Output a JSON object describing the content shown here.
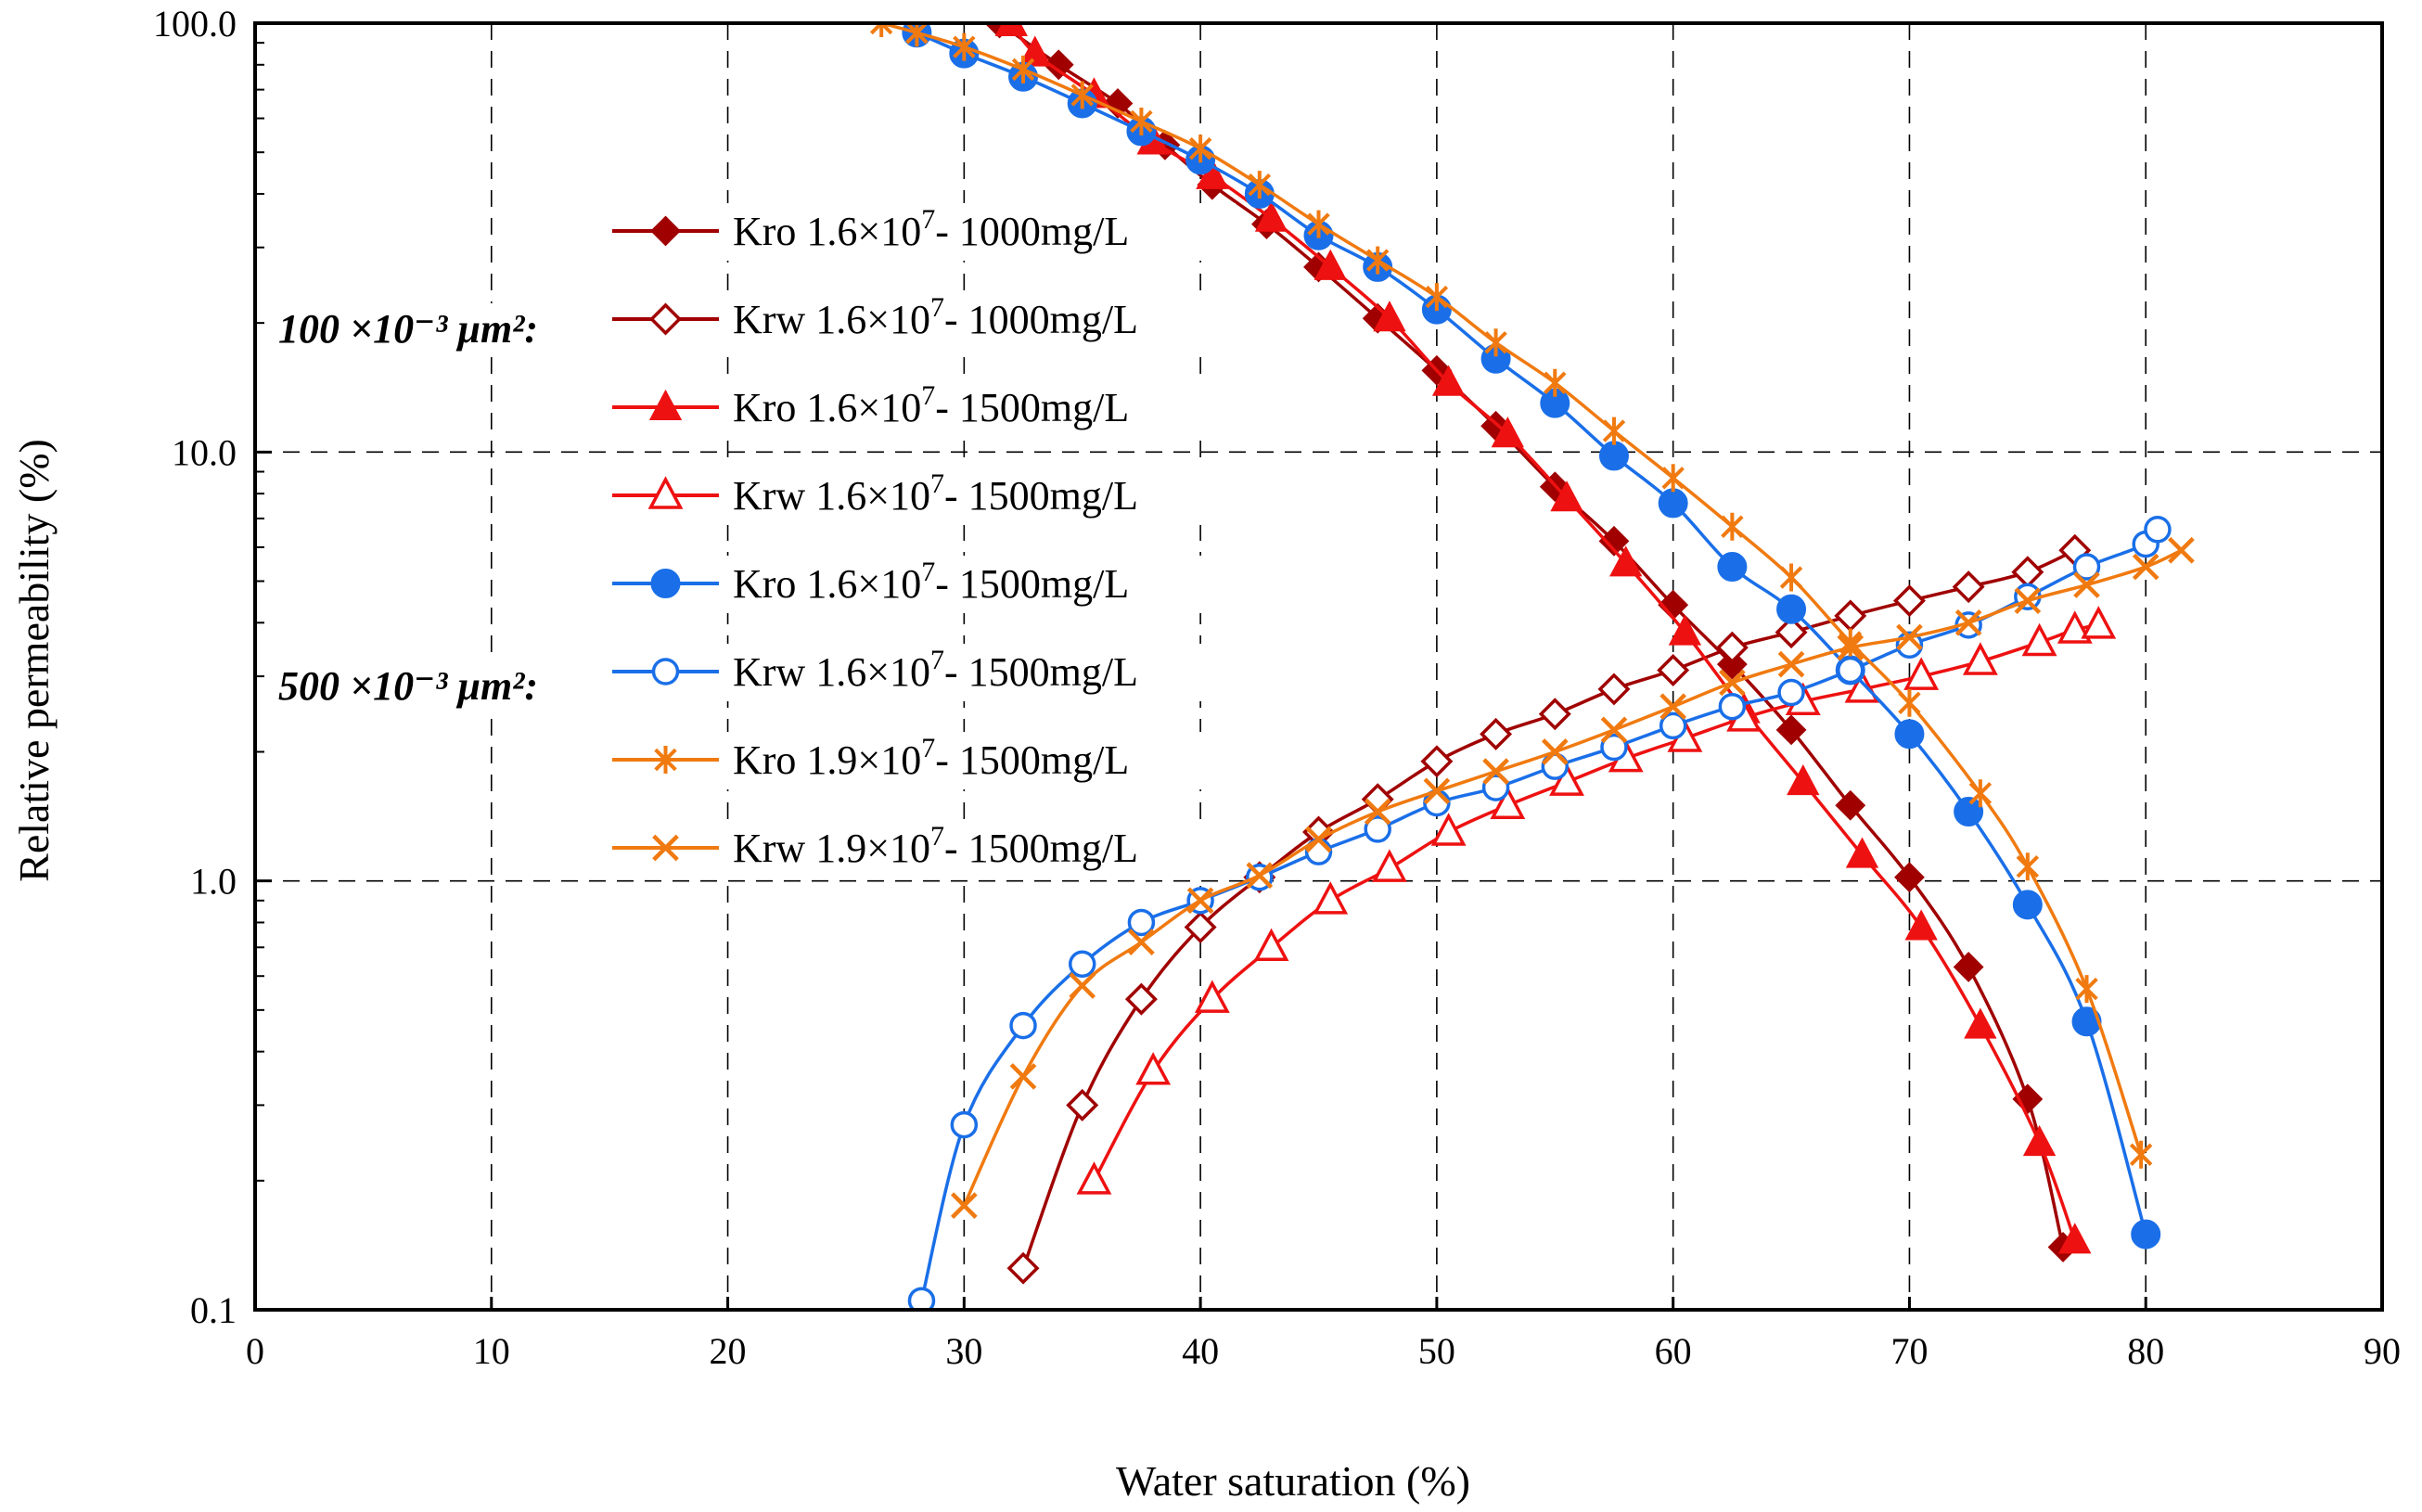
{
  "chart_data": {
    "type": "line",
    "title": "",
    "xlabel": "Water saturation (%)",
    "ylabel": "Relative permeability (%)",
    "xlim": [
      0,
      90
    ],
    "ylim": [
      0.1,
      100
    ],
    "yscale": "log",
    "grid": true,
    "x_ticks": [
      0,
      10,
      20,
      30,
      40,
      50,
      60,
      70,
      80,
      90
    ],
    "x_tick_labels": [
      "0",
      "10",
      "20",
      "30",
      "40",
      "50",
      "60",
      "70",
      "80",
      "90"
    ],
    "y_ticks": [
      0.1,
      1,
      10,
      100
    ],
    "y_tick_labels": [
      "0.1",
      "1.0",
      "10.0",
      "100.0"
    ],
    "group_labels": [
      {
        "text": "100 ×10⁻³ μm²:",
        "series_start": 0
      },
      {
        "text": "500 ×10⁻³ μm²:",
        "series_start": 4
      }
    ],
    "series": [
      {
        "name": "Kro 1.6×10⁷- 1000mg/L",
        "color": "#a00000",
        "marker": "diamond-filled",
        "points": [
          [
            31.5,
            100
          ],
          [
            34,
            80
          ],
          [
            36.5,
            65
          ],
          [
            38.5,
            52
          ],
          [
            40.5,
            42
          ],
          [
            42.8,
            34
          ],
          [
            45,
            27
          ],
          [
            47.5,
            20.5
          ],
          [
            50,
            15.5
          ],
          [
            52.5,
            11.5
          ],
          [
            55,
            8.3
          ],
          [
            57.5,
            6.2
          ],
          [
            60,
            4.4
          ],
          [
            62.5,
            3.2
          ],
          [
            65,
            2.25
          ],
          [
            67.5,
            1.5
          ],
          [
            70,
            1.02
          ],
          [
            72.5,
            0.63
          ],
          [
            75,
            0.31
          ],
          [
            76.5,
            0.14
          ]
        ]
      },
      {
        "name": "Krw 1.6×10⁷- 1000mg/L",
        "color": "#a00000",
        "marker": "diamond-open",
        "points": [
          [
            32.5,
            0.125
          ],
          [
            35,
            0.3
          ],
          [
            37.5,
            0.53
          ],
          [
            40,
            0.78
          ],
          [
            42.5,
            1.02
          ],
          [
            45,
            1.3
          ],
          [
            47.5,
            1.55
          ],
          [
            50,
            1.9
          ],
          [
            52.5,
            2.2
          ],
          [
            55,
            2.45
          ],
          [
            57.5,
            2.8
          ],
          [
            60,
            3.1
          ],
          [
            62.5,
            3.5
          ],
          [
            65,
            3.8
          ],
          [
            67.5,
            4.15
          ],
          [
            70,
            4.5
          ],
          [
            72.5,
            4.85
          ],
          [
            75,
            5.25
          ],
          [
            77,
            5.9
          ]
        ]
      },
      {
        "name": "Kro 1.6×10⁷- 1500mg/L",
        "color": "#ee1111",
        "marker": "triangle-filled",
        "points": [
          [
            32,
            100
          ],
          [
            33,
            85
          ],
          [
            35.5,
            68
          ],
          [
            38,
            53
          ],
          [
            40.5,
            44
          ],
          [
            43,
            35
          ],
          [
            45.5,
            27
          ],
          [
            48,
            20.5
          ],
          [
            50.5,
            14.5
          ],
          [
            53,
            11
          ],
          [
            55.5,
            7.8
          ],
          [
            58,
            5.5
          ],
          [
            60.5,
            3.8
          ],
          [
            63,
            2.5
          ],
          [
            65.5,
            1.7
          ],
          [
            68,
            1.15
          ],
          [
            70.5,
            0.78
          ],
          [
            73,
            0.46
          ],
          [
            75.5,
            0.245
          ],
          [
            77,
            0.145
          ]
        ]
      },
      {
        "name": "Krw 1.6×10⁷- 1500mg/L",
        "color": "#ee1111",
        "marker": "triangle-open",
        "points": [
          [
            35.5,
            0.2
          ],
          [
            38,
            0.36
          ],
          [
            40.5,
            0.53
          ],
          [
            43,
            0.7
          ],
          [
            45.5,
            0.9
          ],
          [
            48,
            1.07
          ],
          [
            50.5,
            1.3
          ],
          [
            53,
            1.5
          ],
          [
            55.5,
            1.7
          ],
          [
            58,
            1.93
          ],
          [
            60.5,
            2.15
          ],
          [
            63,
            2.4
          ],
          [
            65.5,
            2.62
          ],
          [
            68,
            2.8
          ],
          [
            70.5,
            3.0
          ],
          [
            73,
            3.25
          ],
          [
            75.5,
            3.6
          ],
          [
            77,
            3.85
          ],
          [
            78,
            3.95
          ]
        ]
      },
      {
        "name": "Kro 1.6×10⁷- 1500mg/L",
        "color": "#1a6fe8",
        "marker": "circle-filled",
        "points": [
          [
            28,
            95
          ],
          [
            30,
            85
          ],
          [
            32.5,
            75
          ],
          [
            35,
            65
          ],
          [
            37.5,
            56
          ],
          [
            40,
            48
          ],
          [
            42.5,
            40
          ],
          [
            45,
            32
          ],
          [
            47.5,
            27
          ],
          [
            50,
            21.5
          ],
          [
            52.5,
            16.5
          ],
          [
            55,
            13
          ],
          [
            57.5,
            9.8
          ],
          [
            60,
            7.6
          ],
          [
            62.5,
            5.4
          ],
          [
            65,
            4.3
          ],
          [
            67.5,
            3.1
          ],
          [
            70,
            2.2
          ],
          [
            72.5,
            1.45
          ],
          [
            75,
            0.88
          ],
          [
            77.5,
            0.47
          ],
          [
            80,
            0.15
          ]
        ]
      },
      {
        "name": "Krw 1.6×10⁷- 1500mg/L",
        "color": "#1a6fe8",
        "marker": "circle-open",
        "points": [
          [
            28.2,
            0.105
          ],
          [
            30,
            0.27
          ],
          [
            32.5,
            0.46
          ],
          [
            35,
            0.64
          ],
          [
            37.5,
            0.8
          ],
          [
            40,
            0.9
          ],
          [
            42.5,
            1.02
          ],
          [
            45,
            1.17
          ],
          [
            47.5,
            1.32
          ],
          [
            50,
            1.52
          ],
          [
            52.5,
            1.65
          ],
          [
            55,
            1.85
          ],
          [
            57.5,
            2.05
          ],
          [
            60,
            2.3
          ],
          [
            62.5,
            2.55
          ],
          [
            65,
            2.75
          ],
          [
            67.5,
            3.1
          ],
          [
            70,
            3.55
          ],
          [
            72.5,
            3.95
          ],
          [
            75,
            4.6
          ],
          [
            77.5,
            5.4
          ],
          [
            80,
            6.1
          ],
          [
            80.5,
            6.6
          ]
        ]
      },
      {
        "name": "Kro 1.9×10⁷- 1500mg/L",
        "color": "#f07a10",
        "marker": "star",
        "points": [
          [
            26.5,
            100
          ],
          [
            28,
            95
          ],
          [
            30,
            88
          ],
          [
            32.5,
            78
          ],
          [
            35,
            68
          ],
          [
            37.5,
            59
          ],
          [
            40,
            51
          ],
          [
            42.5,
            42
          ],
          [
            45,
            34
          ],
          [
            47.5,
            28
          ],
          [
            50,
            23
          ],
          [
            52.5,
            18
          ],
          [
            55,
            14.5
          ],
          [
            57.5,
            11.2
          ],
          [
            60,
            8.7
          ],
          [
            62.5,
            6.7
          ],
          [
            65,
            5.1
          ],
          [
            67.5,
            3.6
          ],
          [
            70,
            2.6
          ],
          [
            73,
            1.6
          ],
          [
            75,
            1.08
          ],
          [
            77.5,
            0.56
          ],
          [
            79.8,
            0.23
          ]
        ]
      },
      {
        "name": "Krw 1.9×10⁷- 1500mg/L",
        "color": "#f07a10",
        "marker": "x",
        "points": [
          [
            30,
            0.175
          ],
          [
            32.5,
            0.35
          ],
          [
            35,
            0.57
          ],
          [
            37.5,
            0.72
          ],
          [
            40,
            0.9
          ],
          [
            42.5,
            1.03
          ],
          [
            45,
            1.25
          ],
          [
            47.5,
            1.45
          ],
          [
            50,
            1.62
          ],
          [
            52.5,
            1.8
          ],
          [
            55,
            2.0
          ],
          [
            57.5,
            2.25
          ],
          [
            60,
            2.55
          ],
          [
            62.5,
            2.9
          ],
          [
            65,
            3.2
          ],
          [
            67.5,
            3.5
          ],
          [
            70,
            3.7
          ],
          [
            72.5,
            4.0
          ],
          [
            75,
            4.5
          ],
          [
            77.5,
            4.9
          ],
          [
            80,
            5.4
          ],
          [
            81.5,
            5.9
          ]
        ]
      }
    ]
  },
  "legend": {
    "items": [
      {
        "label": "Kro 1.6×10",
        "exp": "7",
        "rest": "- 1000mg/L"
      },
      {
        "label": "Krw 1.6×10",
        "exp": "7",
        "rest": "- 1000mg/L"
      },
      {
        "label": "Kro 1.6×10",
        "exp": "7",
        "rest": "- 1500mg/L"
      },
      {
        "label": "Krw 1.6×10",
        "exp": "7",
        "rest": "- 1500mg/L"
      },
      {
        "label": "Kro 1.6×10",
        "exp": "7",
        "rest": "- 1500mg/L"
      },
      {
        "label": "Krw 1.6×10",
        "exp": "7",
        "rest": "- 1500mg/L"
      },
      {
        "label": "Kro 1.9×10",
        "exp": "7",
        "rest": "- 1500mg/L"
      },
      {
        "label": "Krw 1.9×10",
        "exp": "7",
        "rest": "- 1500mg/L"
      }
    ]
  }
}
